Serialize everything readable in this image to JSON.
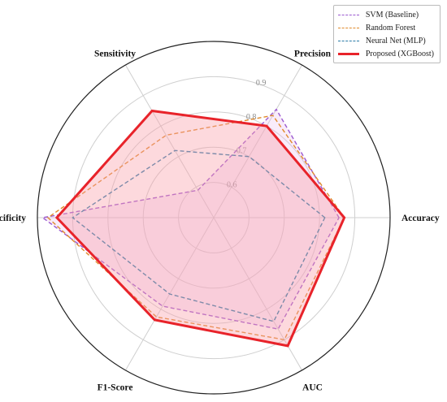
{
  "chart_data": {
    "type": "radar",
    "axes": [
      "Accuracy",
      "Precision",
      "Sensitivity",
      "Specificity",
      "F1-Score",
      "AUC"
    ],
    "rlim": [
      0.5,
      1.0
    ],
    "tick_labels": [
      "0.6",
      "0.7",
      "0.8",
      "0.9"
    ],
    "tick_values": [
      0.6,
      0.7,
      0.8,
      0.9
    ],
    "grid": true,
    "legend_position": "top-right",
    "series": [
      {
        "name": "SVM (Baseline)",
        "values": [
          0.855,
          0.855,
          0.59,
          0.985,
          0.79,
          0.865
        ],
        "color": "#9b59d0",
        "style": "dashed",
        "fill": true
      },
      {
        "name": "Random Forest",
        "values": [
          0.87,
          0.835,
          0.77,
          0.97,
          0.825,
          0.9
        ],
        "color": "#e08a2c",
        "style": "dashed",
        "fill": false
      },
      {
        "name": "Neural Net (MLP)",
        "values": [
          0.815,
          0.7,
          0.72,
          0.9,
          0.75,
          0.84
        ],
        "color": "#2b7ca8",
        "style": "dashed",
        "fill": false
      },
      {
        "name": "Proposed (XGBoost)",
        "values": [
          0.87,
          0.8,
          0.85,
          0.945,
          0.835,
          0.92
        ],
        "color": "#e8232a",
        "style": "solid",
        "fill": true
      }
    ]
  }
}
